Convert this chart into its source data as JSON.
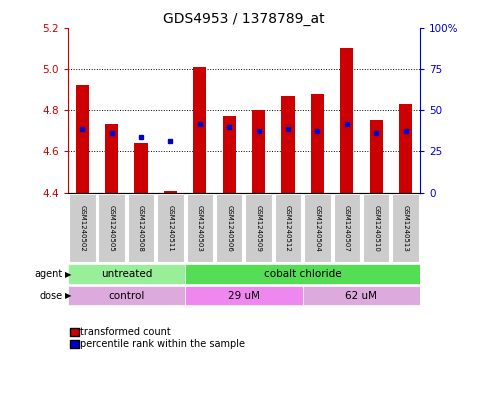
{
  "title": "GDS4953 / 1378789_at",
  "samples": [
    "GSM1240502",
    "GSM1240505",
    "GSM1240508",
    "GSM1240511",
    "GSM1240503",
    "GSM1240506",
    "GSM1240509",
    "GSM1240512",
    "GSM1240504",
    "GSM1240507",
    "GSM1240510",
    "GSM1240513"
  ],
  "transformed_count": [
    4.92,
    4.73,
    4.64,
    4.41,
    5.01,
    4.77,
    4.8,
    4.87,
    4.88,
    5.1,
    4.75,
    4.83
  ],
  "percentile_rank": [
    4.71,
    4.69,
    4.67,
    4.65,
    4.73,
    4.72,
    4.7,
    4.71,
    4.7,
    4.73,
    4.69,
    4.7
  ],
  "bar_bottom": 4.4,
  "ylim_min": 4.4,
  "ylim_max": 5.2,
  "yticks_left": [
    4.4,
    4.6,
    4.8,
    5.0,
    5.2
  ],
  "yticks_right_vals": [
    0,
    25,
    50,
    75,
    100
  ],
  "yticks_right_labels": [
    "0",
    "25",
    "50",
    "75",
    "100%"
  ],
  "bar_color": "#cc0000",
  "dot_color": "#0000cc",
  "grid_color": "#000000",
  "agent_groups": [
    {
      "label": "untreated",
      "start": 0,
      "end": 4,
      "color": "#99ee99"
    },
    {
      "label": "cobalt chloride",
      "start": 4,
      "end": 12,
      "color": "#55dd55"
    }
  ],
  "dose_groups": [
    {
      "label": "control",
      "start": 0,
      "end": 4,
      "color": "#ddaadd"
    },
    {
      "label": "29 uM",
      "start": 4,
      "end": 8,
      "color": "#ee88ee"
    },
    {
      "label": "62 uM",
      "start": 8,
      "end": 12,
      "color": "#ddaadd"
    }
  ],
  "agent_label": "agent",
  "dose_label": "dose",
  "legend_bar_label": "transformed count",
  "legend_dot_label": "percentile rank within the sample",
  "bar_color_left": "#cc0000",
  "ylabel_right_color": "#0000cc",
  "title_fontsize": 10,
  "tick_fontsize": 7.5,
  "bar_width": 0.45,
  "sample_bg_color": "#cccccc",
  "plot_bg_color": "#ffffff"
}
